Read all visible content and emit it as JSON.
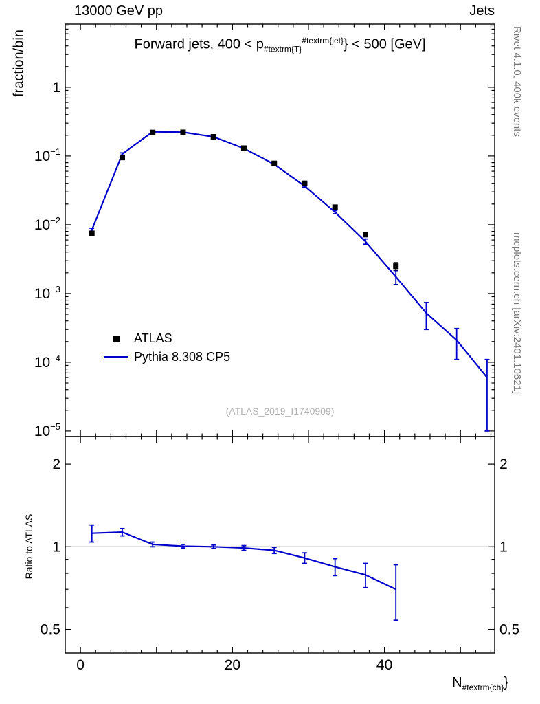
{
  "header": {
    "left": "13000 GeV pp",
    "right": "Jets"
  },
  "panel_title": {
    "prefix": "Forward jets, 400 < p",
    "sub": "#textrm{T}",
    "sup": "#textrm{jet}",
    "suffix": "} < 500 [GeV]"
  },
  "axes": {
    "y_label_top": "fraction/bin",
    "y_label_bottom": "Ratio to ATLAS",
    "x_label": {
      "prefix": "N",
      "sub": "#textrm{ch}",
      "suffix": "}"
    }
  },
  "legend": [
    {
      "type": "square",
      "color": "#000000",
      "label": "ATLAS"
    },
    {
      "type": "line",
      "color": "#0000cc",
      "label": "Pythia 8.308 CP5"
    }
  ],
  "watermark": "(ATLAS_2019_I1740909)",
  "side_notes": {
    "top_right": "Rivet 4.1.0,  400k events",
    "bottom_right": "mcplots.cern.ch [arXiv:2401.10621]"
  },
  "chart_data": {
    "type": "line",
    "title": "Forward jets, 400 < pT(jet) < 500 [GeV]",
    "xlabel": "N_ch",
    "ylabel": "fraction/bin",
    "ratio_ylabel": "Ratio to ATLAS",
    "xlim": [
      -2,
      54.5
    ],
    "x_minor_step": 2,
    "x_major_ticks": [
      0,
      10,
      20,
      30,
      40,
      50
    ],
    "x_labeled_ticks": [
      0,
      20,
      40
    ],
    "main": {
      "yscale": "log",
      "ylim": [
        8.3e-06,
        8.3
      ],
      "y_decades": [
        0,
        -1,
        -2,
        -3,
        -4,
        -5
      ],
      "series": [
        {
          "name": "Pythia 8.308 CP5",
          "type": "line",
          "color": "#0000cc",
          "x": [
            1.5,
            5.5,
            9.5,
            13.5,
            17.5,
            21.5,
            25.5,
            29.5,
            33.5,
            37.5,
            41.5,
            45.5,
            49.5,
            53.5
          ],
          "y": [
            0.0084,
            0.107,
            0.225,
            0.222,
            0.19,
            0.129,
            0.0755,
            0.0365,
            0.0152,
            0.0057,
            0.00175,
            0.00052,
            0.00021,
            6e-05
          ],
          "yerr": [
            0.0005,
            0.004,
            0.005,
            0.005,
            0.004,
            0.003,
            0.002,
            0.0012,
            0.0008,
            0.0005,
            0.0004,
            0.00022,
            0.0001,
            5e-05
          ]
        },
        {
          "name": "ATLAS",
          "type": "points",
          "color": "#000000",
          "x": [
            1.5,
            5.5,
            9.5,
            13.5,
            17.5,
            21.5,
            25.5,
            29.5,
            33.5,
            37.5,
            41.5
          ],
          "y": [
            0.0075,
            0.095,
            0.22,
            0.221,
            0.19,
            0.13,
            0.078,
            0.04,
            0.018,
            0.0072,
            0.0025
          ],
          "yerr": [
            0.0004,
            0.003,
            0.005,
            0.005,
            0.004,
            0.003,
            0.002,
            0.0015,
            0.001,
            0.0005,
            0.0003
          ]
        }
      ]
    },
    "ratio": {
      "yscale": "log",
      "ylim": [
        0.41,
        2.52
      ],
      "yticks": [
        0.5,
        1,
        2
      ],
      "y_minor_ticks": [
        0.6,
        0.7,
        0.8,
        0.9
      ],
      "refline": 1,
      "series": [
        {
          "name": "Pythia/ATLAS",
          "color": "#0000cc",
          "x": [
            1.5,
            5.5,
            9.5,
            13.5,
            17.5,
            21.5,
            25.5,
            29.5,
            33.5,
            37.5,
            41.5
          ],
          "y": [
            1.12,
            1.13,
            1.02,
            1.005,
            1.0,
            0.99,
            0.97,
            0.91,
            0.845,
            0.79,
            0.7
          ],
          "yerr": [
            0.08,
            0.035,
            0.02,
            0.015,
            0.015,
            0.02,
            0.025,
            0.04,
            0.06,
            0.08,
            0.16
          ]
        }
      ]
    }
  }
}
